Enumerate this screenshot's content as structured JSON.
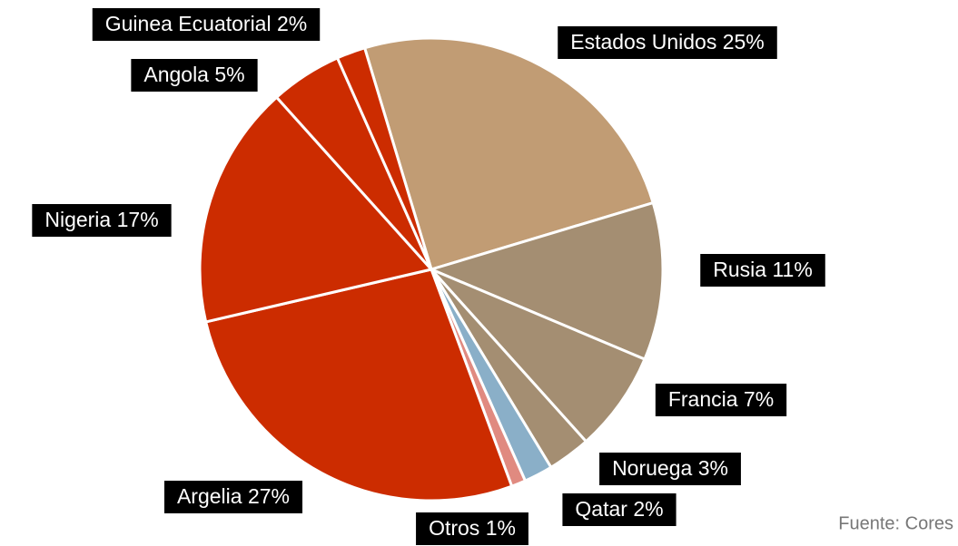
{
  "chart_data": {
    "type": "pie",
    "categories": [
      "Estados Unidos",
      "Rusia",
      "Francia",
      "Noruega",
      "Qatar",
      "Otros",
      "Argelia",
      "Nigeria",
      "Angola",
      "Guinea Ecuatorial"
    ],
    "values": [
      25,
      11,
      7,
      3,
      2,
      1,
      27,
      17,
      5,
      2
    ],
    "value_labels": [
      "25%",
      "11%",
      "7%",
      "3%",
      "2%",
      "1%",
      "27%",
      "17%",
      "5%",
      "2%"
    ],
    "colors": [
      "#c19c74",
      "#a48e72",
      "#a48e72",
      "#a48e72",
      "#8aafc8",
      "#e08a80",
      "#cc2c00",
      "#cc2c00",
      "#cc2c00",
      "#cc2c00"
    ],
    "source": "Fuente: Cores"
  }
}
